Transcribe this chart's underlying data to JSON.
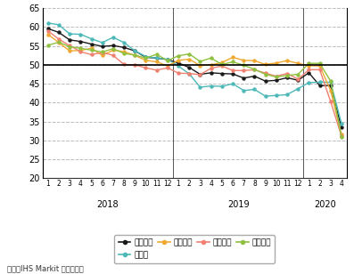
{
  "source": "資料：IHS Markit から作成。",
  "ylim": [
    20,
    65
  ],
  "yticks": [
    20,
    25,
    30,
    35,
    40,
    45,
    50,
    55,
    60,
    65
  ],
  "hline_y": 50,
  "series": {
    "ユーロ圏": {
      "color": "#1a1a1a",
      "marker": "o",
      "values": [
        59.6,
        58.6,
        56.6,
        56.2,
        55.5,
        54.9,
        55.1,
        54.6,
        53.7,
        52.0,
        51.8,
        51.4,
        50.5,
        49.3,
        47.5,
        47.9,
        47.7,
        47.6,
        46.5,
        47.0,
        45.7,
        45.9,
        46.6,
        45.9,
        47.9,
        44.5,
        44.5,
        33.4
      ]
    },
    "ドイツ": {
      "color": "#4db8b8",
      "marker": "o",
      "values": [
        61.1,
        60.6,
        58.2,
        58.1,
        56.9,
        55.9,
        57.3,
        55.9,
        53.7,
        52.2,
        51.8,
        51.5,
        49.7,
        47.6,
        44.1,
        44.4,
        44.3,
        45.0,
        43.2,
        43.5,
        41.7,
        41.9,
        42.1,
        43.7,
        45.3,
        45.4,
        45.4,
        34.5
      ]
    },
    "フランス": {
      "color": "#f0a830",
      "marker": "o",
      "values": [
        58.1,
        55.9,
        53.7,
        53.8,
        54.4,
        52.5,
        53.9,
        53.5,
        52.5,
        51.2,
        50.8,
        49.7,
        51.2,
        51.5,
        49.8,
        50.0,
        50.6,
        52.0,
        51.2,
        51.1,
        50.1,
        50.5,
        51.1,
        50.4,
        49.8,
        49.7,
        43.2,
        31.5
      ]
    },
    "イタリア": {
      "color": "#f08070",
      "marker": "o",
      "values": [
        59.0,
        56.8,
        55.1,
        53.5,
        52.7,
        53.3,
        52.5,
        50.1,
        50.0,
        49.2,
        48.6,
        49.2,
        47.8,
        47.7,
        47.4,
        49.1,
        49.7,
        48.5,
        48.5,
        48.7,
        47.8,
        47.0,
        47.7,
        46.2,
        48.7,
        48.7,
        40.3,
        31.1
      ]
    },
    "スペイン": {
      "color": "#90c040",
      "marker": "o",
      "values": [
        55.2,
        56.0,
        54.8,
        54.4,
        53.9,
        53.4,
        54.3,
        53.0,
        52.6,
        51.8,
        52.8,
        51.1,
        52.4,
        52.9,
        50.9,
        51.8,
        50.1,
        50.8,
        49.9,
        48.8,
        47.5,
        46.8,
        47.2,
        47.5,
        50.4,
        50.4,
        45.7,
        30.8
      ]
    }
  },
  "legend_order": [
    "ユーロ圏",
    "ドイツ",
    "フランス",
    "イタリア",
    "スペイン"
  ],
  "background_color": "#ffffff",
  "grid_color": "#bbbbbb",
  "grid_style": "--"
}
